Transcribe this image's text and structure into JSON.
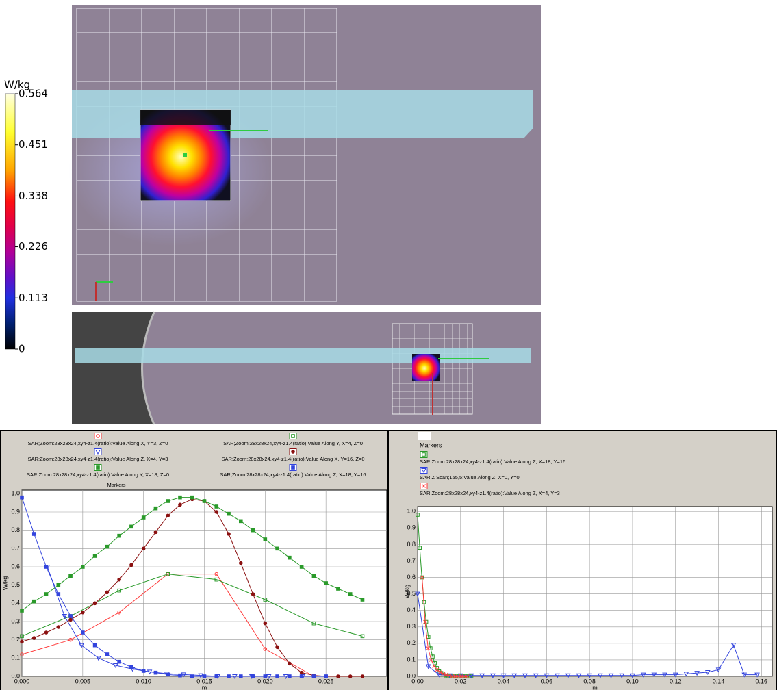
{
  "colorbar": {
    "unit": "W/kg",
    "ticks": [
      0.564,
      0.451,
      0.338,
      0.226,
      0.113,
      0
    ]
  },
  "chart_data": [
    {
      "type": "line",
      "xlabel": "m",
      "ylabel": "W/kg",
      "legend_title": "Markers",
      "grid": true,
      "xlim": [
        0,
        0.03
      ],
      "ylim": [
        0,
        1.02
      ],
      "xticks": [
        {
          "value": 0,
          "label": "0.000"
        },
        {
          "value": 0.005,
          "label": "0.005"
        },
        {
          "value": 0.01,
          "label": "0.010"
        },
        {
          "value": 0.015,
          "label": "0.015"
        },
        {
          "value": 0.02,
          "label": "0.020"
        },
        {
          "value": 0.025,
          "label": "0.025"
        }
      ],
      "yticks": [
        {
          "value": 0,
          "label": "0.0"
        },
        {
          "value": 0.1,
          "label": "0.1"
        },
        {
          "value": 0.2,
          "label": "0.2"
        },
        {
          "value": 0.3,
          "label": "0.3"
        },
        {
          "value": 0.4,
          "label": "0.4"
        },
        {
          "value": 0.5,
          "label": "0.5"
        },
        {
          "value": 0.6,
          "label": "0.6"
        },
        {
          "value": 0.7,
          "label": "0.7"
        },
        {
          "value": 0.8,
          "label": "0.8"
        },
        {
          "value": 0.9,
          "label": "0.9"
        },
        {
          "value": 1,
          "label": "1.0"
        }
      ],
      "series": [
        {
          "name": "SAR;Zoom:28x28x24,xy4-z1.4(ratio):Value Along  X, Y=3, Z=0",
          "color": "#ff3b3b",
          "marker": "circle-open",
          "x": [
            0,
            0.004,
            0.008,
            0.012,
            0.016,
            0.02,
            0.024
          ],
          "values": [
            0.12,
            0.2,
            0.35,
            0.56,
            0.56,
            0.15,
            0
          ]
        },
        {
          "name": "SAR;Zoom:28x28x24,xy4-z1.4(ratio):Value Along  Y, X=4, Z=0",
          "color": "#2a9a2a",
          "marker": "square-open",
          "x": [
            0,
            0.004,
            0.008,
            0.012,
            0.016,
            0.02,
            0.024,
            0.028
          ],
          "values": [
            0.22,
            0.33,
            0.47,
            0.56,
            0.53,
            0.42,
            0.29,
            0.22
          ]
        },
        {
          "name": "SAR;Zoom:28x28x24,xy4-z1.4(ratio):Value Along  Z, X=4, Y=3",
          "color": "#3344dd",
          "marker": "triangle-open",
          "x": [
            0.0021,
            0.0035,
            0.0049,
            0.0063,
            0.0077,
            0.0091,
            0.0105,
            0.0119,
            0.0133,
            0.0147,
            0.0161,
            0.0175,
            0.0189,
            0.0203,
            0.0217,
            0.0231
          ],
          "values": [
            0.6,
            0.33,
            0.17,
            0.1,
            0.06,
            0.04,
            0.025,
            0.015,
            0.01,
            0.005,
            0,
            0,
            0,
            0,
            0,
            0
          ]
        },
        {
          "name": "SAR;Zoom:28x28x24,xy4-z1.4(ratio):Value Along  X, Y=16, Z=0",
          "color": "#8b1010",
          "marker": "circle",
          "x": [
            0,
            0.001,
            0.002,
            0.003,
            0.004,
            0.005,
            0.006,
            0.007,
            0.008,
            0.009,
            0.01,
            0.011,
            0.012,
            0.013,
            0.014,
            0.015,
            0.016,
            0.017,
            0.018,
            0.019,
            0.02,
            0.021,
            0.022,
            0.023,
            0.024,
            0.025,
            0.026,
            0.027,
            0.028
          ],
          "values": [
            0.19,
            0.21,
            0.24,
            0.27,
            0.31,
            0.35,
            0.4,
            0.46,
            0.53,
            0.61,
            0.7,
            0.79,
            0.88,
            0.94,
            0.97,
            0.96,
            0.9,
            0.78,
            0.62,
            0.45,
            0.29,
            0.16,
            0.07,
            0.02,
            0.005,
            0,
            0,
            0,
            0
          ]
        },
        {
          "name": "SAR;Zoom:28x28x24,xy4-z1.4(ratio):Value Along  Y, X=18, Z=0",
          "color": "#2a9a2a",
          "marker": "square",
          "x": [
            0,
            0.001,
            0.002,
            0.003,
            0.004,
            0.005,
            0.006,
            0.007,
            0.008,
            0.009,
            0.01,
            0.011,
            0.012,
            0.013,
            0.014,
            0.015,
            0.016,
            0.017,
            0.018,
            0.019,
            0.02,
            0.021,
            0.022,
            0.023,
            0.024,
            0.025,
            0.026,
            0.027,
            0.028
          ],
          "values": [
            0.36,
            0.41,
            0.45,
            0.5,
            0.55,
            0.6,
            0.66,
            0.71,
            0.77,
            0.82,
            0.87,
            0.92,
            0.96,
            0.98,
            0.98,
            0.96,
            0.93,
            0.89,
            0.85,
            0.8,
            0.75,
            0.7,
            0.65,
            0.6,
            0.55,
            0.51,
            0.48,
            0.45,
            0.42
          ]
        },
        {
          "name": "SAR;Zoom:28x28x24,xy4-z1.4(ratio):Value Along  Z, X=18, Y=16",
          "color": "#3344dd",
          "marker": "square",
          "x": [
            0,
            0.001,
            0.002,
            0.003,
            0.004,
            0.005,
            0.006,
            0.007,
            0.008,
            0.009,
            0.01,
            0.011,
            0.012,
            0.013,
            0.014,
            0.015,
            0.016,
            0.017,
            0.018,
            0.019,
            0.02,
            0.021,
            0.022,
            0.023,
            0.024,
            0.025
          ],
          "values": [
            0.98,
            0.78,
            0.6,
            0.45,
            0.33,
            0.24,
            0.17,
            0.12,
            0.08,
            0.05,
            0.03,
            0.02,
            0.01,
            0.005,
            0,
            0,
            0,
            0,
            0,
            0,
            0,
            0,
            0,
            0,
            0,
            0
          ]
        }
      ]
    },
    {
      "type": "line",
      "xlabel": "m",
      "ylabel": "W/kg",
      "legend_title": "Markers",
      "grid": true,
      "xlim": [
        0,
        0.165
      ],
      "ylim": [
        0,
        1.03
      ],
      "xticks": [
        {
          "value": 0,
          "label": "0.00"
        },
        {
          "value": 0.02,
          "label": "0.02"
        },
        {
          "value": 0.04,
          "label": "0.04"
        },
        {
          "value": 0.06,
          "label": "0.06"
        },
        {
          "value": 0.08,
          "label": "0.08"
        },
        {
          "value": 0.1,
          "label": "0.10"
        },
        {
          "value": 0.12,
          "label": "0.12"
        },
        {
          "value": 0.14,
          "label": "0.14"
        },
        {
          "value": 0.16,
          "label": "0.16"
        }
      ],
      "yticks": [
        {
          "value": 0,
          "label": "0.0"
        },
        {
          "value": 0.1,
          "label": "0.1"
        },
        {
          "value": 0.2,
          "label": "0.2"
        },
        {
          "value": 0.3,
          "label": "0.3"
        },
        {
          "value": 0.4,
          "label": "0.4"
        },
        {
          "value": 0.5,
          "label": "0.5"
        },
        {
          "value": 0.6,
          "label": "0.6"
        },
        {
          "value": 0.7,
          "label": "0.7"
        },
        {
          "value": 0.8,
          "label": "0.8"
        },
        {
          "value": 0.9,
          "label": "0.9"
        },
        {
          "value": 1,
          "label": "1.0"
        }
      ],
      "series": [
        {
          "name": "SAR;Zoom:28x28x24,xy4-z1.4(ratio):Value Along Z, X=18, Y=16",
          "color": "#2a9a2a",
          "marker": "square-open",
          "x": [
            0,
            0.001,
            0.002,
            0.003,
            0.004,
            0.005,
            0.006,
            0.007,
            0.008,
            0.009,
            0.01,
            0.011,
            0.012,
            0.013,
            0.014,
            0.015,
            0.016,
            0.017,
            0.018,
            0.019,
            0.02,
            0.021,
            0.022,
            0.023,
            0.024,
            0.025
          ],
          "values": [
            0.98,
            0.78,
            0.6,
            0.45,
            0.33,
            0.24,
            0.17,
            0.12,
            0.08,
            0.05,
            0.03,
            0.02,
            0.01,
            0.005,
            0,
            0,
            0,
            0,
            0,
            0,
            0,
            0,
            0,
            0,
            0,
            0
          ]
        },
        {
          "name": "SAR;Z Scan;155,5:Value Along Z, X=0, Y=0",
          "color": "#3344dd",
          "marker": "triangle-open",
          "x": [
            0,
            0.005,
            0.01,
            0.015,
            0.02,
            0.025,
            0.03,
            0.035,
            0.04,
            0.045,
            0.05,
            0.055,
            0.06,
            0.065,
            0.07,
            0.075,
            0.08,
            0.085,
            0.09,
            0.095,
            0.1,
            0.105,
            0.11,
            0.115,
            0.12,
            0.125,
            0.13,
            0.135,
            0.14,
            0.147,
            0.152,
            0.158
          ],
          "values": [
            0.5,
            0.06,
            0.01,
            0.005,
            0.005,
            0.005,
            0.005,
            0.005,
            0.005,
            0.005,
            0.005,
            0.005,
            0.005,
            0.005,
            0.005,
            0.005,
            0.005,
            0.005,
            0.005,
            0.005,
            0.005,
            0.01,
            0.01,
            0.01,
            0.01,
            0.015,
            0.02,
            0.025,
            0.04,
            0.19,
            0.01,
            0.01
          ]
        },
        {
          "name": "SAR;Zoom:28x28x24,xy4-z1.4(ratio):Value Along Z, X=4, Y=3",
          "color": "#ff3b3b",
          "marker": "x-open",
          "x": [
            0.0021,
            0.0035,
            0.0049,
            0.0063,
            0.0077,
            0.0091,
            0.0105,
            0.0119,
            0.0133,
            0.0147,
            0.0161,
            0.0175,
            0.0189,
            0.0203,
            0.0217,
            0.0231
          ],
          "values": [
            0.6,
            0.33,
            0.17,
            0.1,
            0.06,
            0.04,
            0.025,
            0.015,
            0.01,
            0.005,
            0,
            0,
            0,
            0,
            0,
            0
          ]
        }
      ]
    }
  ]
}
